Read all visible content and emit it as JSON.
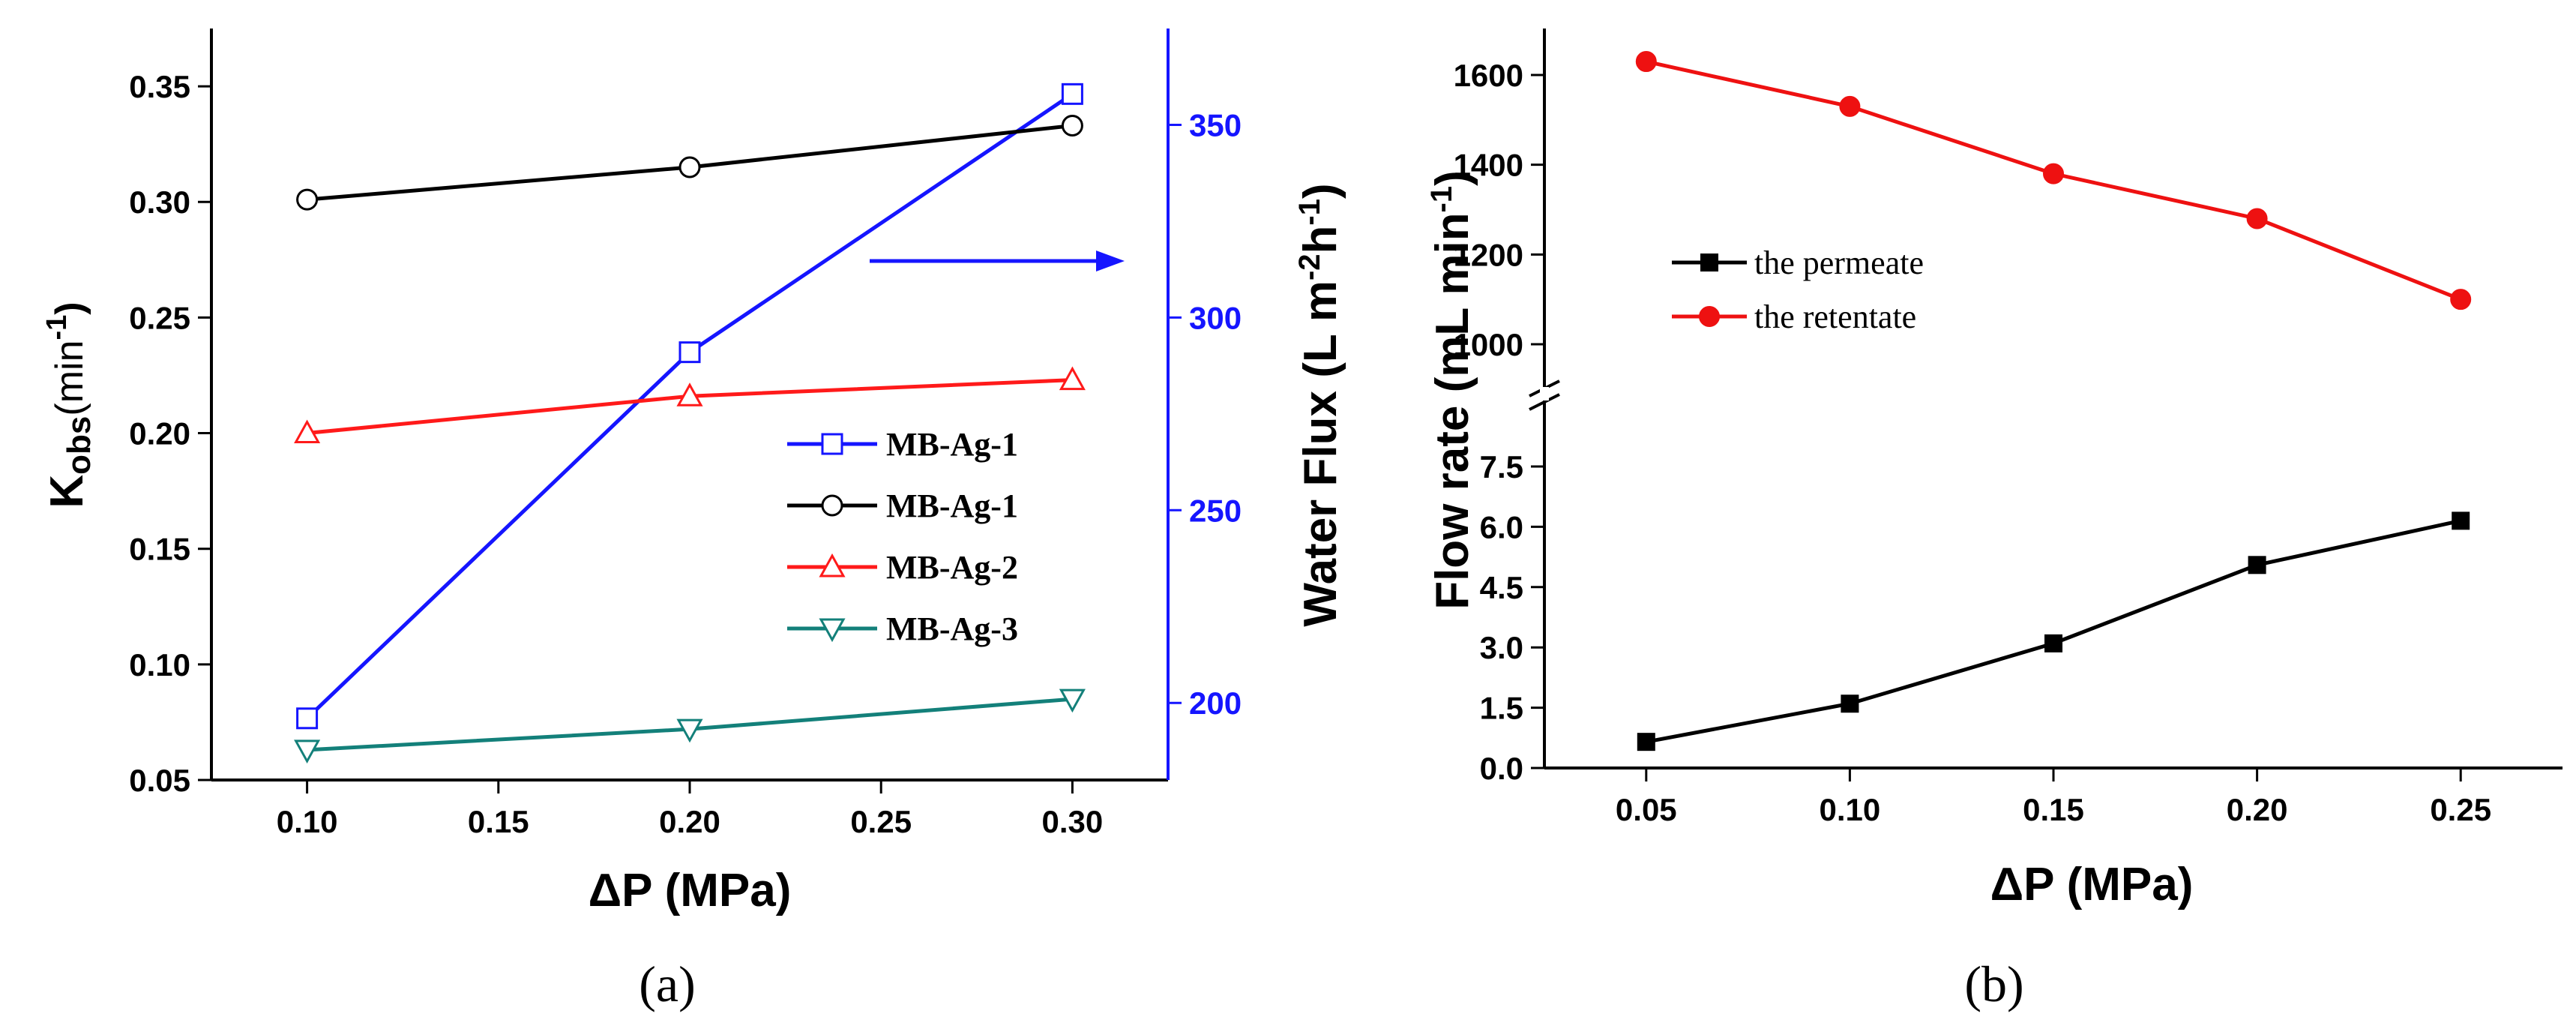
{
  "colors": {
    "blue": "#1515ff",
    "black": "#000000",
    "red": "#ff1a1a",
    "teal": "#13807a",
    "red_b": "#ee1111"
  },
  "panel_a": {
    "label": "(a)",
    "ylabel_main": "K",
    "ylabel_sub": "obs",
    "ylabel_unit_open": "(min",
    "ylabel_unit_sup": "-1",
    "ylabel_unit_close": ")",
    "y2label_main": "Water Flux (L m",
    "y2label_sup1": "-2",
    "y2label_mid": "h",
    "y2label_sup2": "-1",
    "y2label_close": ")"
  },
  "panel_b": {
    "label": "(b)",
    "ylabel_main": "Flow rate (mL min",
    "ylabel_sup": "-1",
    "ylabel_close": ")"
  },
  "chart_data": [
    {
      "type": "line",
      "xlabel": "ΔP (MPa)",
      "ylabel": "Kobs(min-1)",
      "y2label": "Water Flux (L m-2h-1)",
      "x": [
        0.1,
        0.2,
        0.3
      ],
      "xticks": [
        "0.10",
        "0.15",
        "0.20",
        "0.25",
        "0.30"
      ],
      "xlim": [
        0.075,
        0.325
      ],
      "ylim": [
        0.05,
        0.375
      ],
      "yticks": [
        "0.05",
        "0.10",
        "0.15",
        "0.20",
        "0.25",
        "0.30",
        "0.35"
      ],
      "y2lim": [
        180,
        375
      ],
      "y2ticks": [
        "200",
        "250",
        "300",
        "350"
      ],
      "series": [
        {
          "name": "MB-Ag-1",
          "axis": "right",
          "marker": "square-open",
          "color": "#1515ff",
          "values": [
            196,
            291,
            358
          ]
        },
        {
          "name": "MB-Ag-1",
          "axis": "left",
          "marker": "circle-open",
          "color": "#000000",
          "values": [
            0.301,
            0.315,
            0.333
          ]
        },
        {
          "name": "MB-Ag-2",
          "axis": "left",
          "marker": "triangle-up-open",
          "color": "#ff1a1a",
          "values": [
            0.2,
            0.216,
            0.223
          ]
        },
        {
          "name": "MB-Ag-3",
          "axis": "left",
          "marker": "triangle-down-open",
          "color": "#13807a",
          "values": [
            0.063,
            0.072,
            0.085
          ]
        }
      ],
      "legend_position": "center-right"
    },
    {
      "type": "line",
      "xlabel": "ΔP (MPa)",
      "ylabel": "Flow rate (mL min-1)",
      "x": [
        0.05,
        0.1,
        0.15,
        0.2,
        0.25
      ],
      "xticks": [
        "0.05",
        "0.10",
        "0.15",
        "0.20",
        "0.25"
      ],
      "xlim": [
        0.025,
        0.275
      ],
      "broken_y_axis": true,
      "ylim_upper": [
        900,
        1700
      ],
      "yticks_upper": [
        "1000",
        "1200",
        "1400",
        "1600"
      ],
      "ylim_lower": [
        0,
        9
      ],
      "yticks_lower": [
        "0.0",
        "1.5",
        "3.0",
        "4.5",
        "6.0",
        "7.5"
      ],
      "series": [
        {
          "name": "the permeate",
          "segment": "lower",
          "marker": "square-filled",
          "color": "#000000",
          "values": [
            0.65,
            1.6,
            3.1,
            5.05,
            6.15
          ]
        },
        {
          "name": "the retentate",
          "segment": "upper",
          "marker": "circle-filled",
          "color": "#ee1111",
          "values": [
            1630,
            1530,
            1380,
            1280,
            1100
          ]
        }
      ],
      "legend_position": "center-left"
    }
  ]
}
